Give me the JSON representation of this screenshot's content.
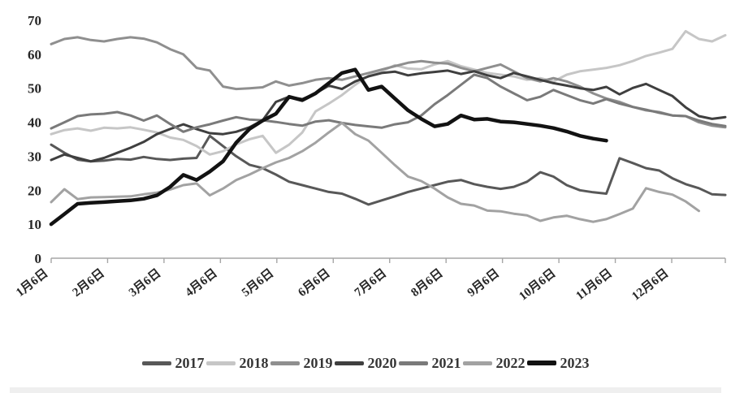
{
  "chart_data": {
    "type": "line",
    "title": "",
    "xlabel": "",
    "ylabel": "",
    "ylim": [
      0,
      70
    ],
    "yticks": [
      0,
      10,
      20,
      30,
      40,
      50,
      60,
      70
    ],
    "x_tick_labels": [
      "1月6日",
      "2月6日",
      "3月6日",
      "4月6日",
      "5月6日",
      "6月6日",
      "7月6日",
      "8月6日",
      "9月6日",
      "10月6日",
      "11月6日",
      "12月6日"
    ],
    "x_unit": "weekly dates, Jan–Dec",
    "grid": false,
    "legend_position": "bottom",
    "axis_color": "#a6a6a6",
    "label_color": "#262626",
    "weeks_total": 52,
    "series": [
      {
        "name": "2017",
        "color": "#585858",
        "width": 3,
        "values": [
          33.4,
          31,
          29,
          28.5,
          28.7,
          29.2,
          29,
          29.8,
          29.2,
          28.9,
          29.3,
          29.5,
          36,
          33,
          30,
          27.5,
          26.5,
          24.6,
          22.5,
          21.5,
          20.5,
          19.5,
          19,
          17.5,
          15.8,
          17,
          18.2,
          19.5,
          20.5,
          21.5,
          22.5,
          23,
          21.8,
          21,
          20.4,
          21,
          22.5,
          25.3,
          24,
          21.5,
          20,
          19.4,
          19,
          29.4,
          28,
          26.5,
          25.8,
          23.5,
          21.8,
          20.6,
          18.8,
          18.6
        ]
      },
      {
        "name": "2018",
        "color": "#c6c6c6",
        "width": 3,
        "values": [
          36.5,
          37.7,
          38.2,
          37.5,
          38.4,
          38.2,
          38.5,
          37.8,
          37,
          35.5,
          34.8,
          33,
          30.5,
          31.5,
          33.5,
          35,
          36,
          31,
          33.4,
          37,
          43.2,
          45.5,
          48,
          51,
          53.7,
          55,
          56.8,
          55.8,
          55.6,
          57,
          58,
          56.5,
          55.5,
          54.5,
          54,
          53.5,
          52.5,
          53,
          52,
          54,
          55,
          55.5,
          56,
          56.8,
          58,
          59.5,
          60.5,
          61.6,
          66.8,
          64.5,
          63.8,
          65.6
        ]
      },
      {
        "name": "2019",
        "color": "#8f8f8f",
        "width": 3,
        "values": [
          63,
          64.5,
          65,
          64.2,
          63.8,
          64.5,
          65,
          64.6,
          63.5,
          61.5,
          60,
          56,
          55.2,
          50.5,
          49.8,
          50,
          50.3,
          52,
          50.8,
          51.5,
          52.5,
          53,
          52.5,
          53.5,
          54.5,
          55.5,
          56.5,
          57.5,
          58,
          57.5,
          57.3,
          56,
          55,
          56,
          57,
          55,
          53,
          52,
          53,
          52,
          50.5,
          48.5,
          47,
          46,
          44.5,
          43.5,
          43,
          42,
          41.8,
          40,
          39,
          38.5
        ]
      },
      {
        "name": "2020",
        "color": "#3f3f3f",
        "width": 3,
        "values": [
          28.9,
          30.5,
          29.5,
          28.5,
          29.5,
          31,
          32.5,
          34.2,
          36.5,
          38,
          39.4,
          38,
          36.8,
          36.5,
          37.2,
          38.5,
          40.6,
          46,
          47.5,
          46.8,
          48.5,
          50.8,
          49.8,
          52,
          53.5,
          54.5,
          54.9,
          53.8,
          54.4,
          54.8,
          55.2,
          54.2,
          55,
          53.8,
          53,
          54.5,
          53.5,
          52.5,
          51.5,
          50.8,
          50,
          49.5,
          50.4,
          48.2,
          50.1,
          51.3,
          49.5,
          47.7,
          44.4,
          41.8,
          41,
          41.5
        ]
      },
      {
        "name": "2021",
        "color": "#7a7a7a",
        "width": 3,
        "values": [
          38.2,
          40,
          41.8,
          42.3,
          42.5,
          43,
          42,
          40.5,
          42,
          39.5,
          37.2,
          38.5,
          39.4,
          40.5,
          41.5,
          40.8,
          40.6,
          40.1,
          39.5,
          39,
          40.2,
          40.6,
          39.8,
          39.2,
          38.8,
          38.4,
          39.4,
          40,
          42,
          45.3,
          48,
          51,
          54,
          53,
          50.5,
          48.5,
          46.5,
          47.5,
          49.5,
          48,
          46.5,
          45.5,
          46.8,
          45.5,
          44.5,
          43.7,
          42.8,
          42,
          41.8,
          40.5,
          39.5,
          38.9
        ]
      },
      {
        "name": "2022",
        "color": "#a2a2a2",
        "width": 3,
        "values": [
          16.5,
          20.3,
          17.4,
          17.9,
          18,
          18.1,
          18.2,
          18.8,
          19.3,
          20.2,
          21.5,
          22,
          18.5,
          20.5,
          23,
          24.6,
          26.5,
          28.2,
          29.5,
          31.5,
          34,
          37,
          39.8,
          36.5,
          34.6,
          31,
          27.4,
          24,
          22.7,
          20.5,
          17.9,
          16,
          15.5,
          14,
          13.8,
          13.1,
          12.6,
          11,
          12,
          12.5,
          11.5,
          10.7,
          11.5,
          13,
          14.6,
          20.6,
          19.5,
          18.7,
          16.7,
          13.9
        ]
      },
      {
        "name": "2023",
        "color": "#121212",
        "width": 4.5,
        "values": [
          10,
          13,
          16,
          16.3,
          16.5,
          16.8,
          17,
          17.5,
          18.5,
          21,
          24.5,
          23,
          25.5,
          28.5,
          34,
          38,
          40.5,
          42.5,
          47.5,
          46.5,
          48.5,
          51.5,
          54.5,
          55.5,
          49.5,
          50.5,
          47,
          43.5,
          41,
          38.8,
          39.5,
          42,
          40.8,
          41,
          40.2,
          40,
          39.5,
          39,
          38.3,
          37.3,
          36,
          35.2,
          34.6
        ]
      }
    ]
  }
}
